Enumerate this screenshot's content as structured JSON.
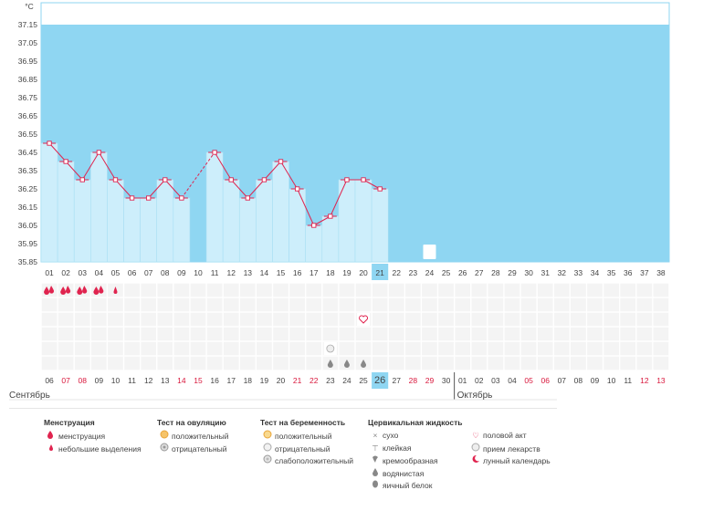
{
  "chart_data": {
    "type": "line",
    "unit_label": "°C",
    "ylim": [
      35.85,
      37.15
    ],
    "y_ticks": [
      "37.15",
      "37.05",
      "36.95",
      "36.85",
      "36.75",
      "36.65",
      "36.55",
      "36.45",
      "36.35",
      "36.25",
      "36.15",
      "36.05",
      "35.95",
      "35.85"
    ],
    "cycle_days": [
      "01",
      "02",
      "03",
      "04",
      "05",
      "06",
      "07",
      "08",
      "09",
      "10",
      "11",
      "12",
      "13",
      "14",
      "15",
      "16",
      "17",
      "18",
      "19",
      "20",
      "21",
      "22",
      "23",
      "24",
      "25",
      "26",
      "27",
      "28",
      "29",
      "30",
      "31",
      "32",
      "33",
      "34",
      "35",
      "36",
      "37",
      "38"
    ],
    "temperatures": [
      36.5,
      36.4,
      36.3,
      36.45,
      36.3,
      36.2,
      36.2,
      36.3,
      36.2,
      null,
      36.45,
      36.3,
      36.2,
      36.3,
      36.4,
      36.25,
      36.05,
      36.1,
      36.3,
      36.3,
      36.25,
      null,
      null,
      null,
      null,
      null,
      null,
      null,
      null,
      null,
      null,
      null,
      null,
      null,
      null,
      null,
      null,
      null
    ],
    "current_cycle_day": "21",
    "lunar_calendar_day": "24",
    "dates": [
      "06",
      "07",
      "08",
      "09",
      "10",
      "11",
      "12",
      "13",
      "14",
      "15",
      "16",
      "17",
      "18",
      "19",
      "20",
      "21",
      "22",
      "23",
      "24",
      "25",
      "26",
      "27",
      "28",
      "29",
      "30",
      "01",
      "02",
      "03",
      "04",
      "05",
      "06",
      "07",
      "08",
      "09",
      "10",
      "11",
      "12",
      "13"
    ],
    "weekend_dates": [
      "07",
      "08",
      "14",
      "15",
      "21",
      "22",
      "28",
      "29",
      "05",
      "06",
      "12",
      "13"
    ],
    "today_date_index": 20,
    "months": [
      "Сентябрь",
      "Октябрь"
    ],
    "month_start_index": 25,
    "menstruation_days": [
      {
        "day": "01",
        "kind": "menstruation"
      },
      {
        "day": "02",
        "kind": "menstruation"
      },
      {
        "day": "03",
        "kind": "menstruation"
      },
      {
        "day": "04",
        "kind": "menstruation"
      },
      {
        "day": "05",
        "kind": "light"
      }
    ],
    "intercourse_days": [
      "20"
    ],
    "medication_days": [
      "18"
    ],
    "cervical_watery_days": [
      "18",
      "19",
      "20"
    ]
  },
  "legend": {
    "menstruation": {
      "title": "Менструация",
      "items": [
        "менструация",
        "небольшие выделения"
      ]
    },
    "ovulation_test": {
      "title": "Тест на овуляцию",
      "items": [
        "положительный",
        "отрицательный"
      ]
    },
    "pregnancy_test": {
      "title": "Тест на беременность",
      "items": [
        "положительный",
        "отрицательный",
        "слабоположительный"
      ]
    },
    "cervical_fluid": {
      "title": "Цервикальная жидкость",
      "items": [
        "сухо",
        "клейкая",
        "кремообразная",
        "водянистая",
        "яичный белок"
      ]
    },
    "other": {
      "items": [
        "половой акт",
        "прием лекарств",
        "лунный календарь"
      ]
    }
  },
  "colors": {
    "plot_bg": "#8fd6f2",
    "bar_fill": "#cdeefb",
    "line": "#e0244f",
    "today_highlight": "#8fd6f2",
    "weekend_text": "#d9183d"
  }
}
